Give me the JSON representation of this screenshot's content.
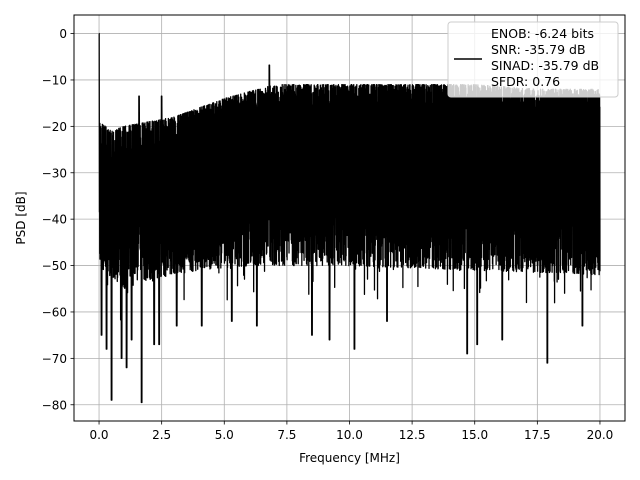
{
  "chart_data": {
    "type": "line",
    "title": "",
    "xlabel": "Frequency [MHz]",
    "ylabel": "PSD [dB]",
    "xlim": [
      -1.0,
      21.0
    ],
    "ylim": [
      -83.5,
      4.0
    ],
    "xticks": [
      0.0,
      2.5,
      5.0,
      7.5,
      10.0,
      12.5,
      15.0,
      17.5,
      20.0
    ],
    "xtick_labels": [
      "0.0",
      "2.5",
      "5.0",
      "7.5",
      "10.0",
      "12.5",
      "15.0",
      "17.5",
      "20.0"
    ],
    "yticks": [
      0,
      -10,
      -20,
      -30,
      -40,
      -50,
      -60,
      -70,
      -80
    ],
    "ytick_labels": [
      "0",
      "−10",
      "−20",
      "−30",
      "−40",
      "−50",
      "−60",
      "−70",
      "−80"
    ],
    "grid": true,
    "legend_position": "top-right",
    "legend": [
      "ENOB: -6.24 bits",
      "SNR: -35.79 dB",
      "SINAD: -35.79 dB",
      "SFDR: 0.76"
    ],
    "series_color": "#000000",
    "series": [
      {
        "x_range": [
          0.0,
          20.0
        ],
        "noise_band": {
          "upper": [
            [
              0.0,
              -19
            ],
            [
              0.5,
              -21
            ],
            [
              1.0,
              -20
            ],
            [
              2.0,
              -19
            ],
            [
              3.0,
              -18
            ],
            [
              4.0,
              -16
            ],
            [
              5.0,
              -14
            ],
            [
              6.0,
              -12.5
            ],
            [
              7.0,
              -11
            ],
            [
              8.0,
              -11
            ],
            [
              10.0,
              -11
            ],
            [
              12.5,
              -11
            ],
            [
              15.0,
              -11
            ],
            [
              17.5,
              -12
            ],
            [
              20.0,
              -12
            ]
          ],
          "core_low": [
            [
              0.0,
              -50
            ],
            [
              1.0,
              -55
            ],
            [
              2.0,
              -53
            ],
            [
              4.0,
              -51
            ],
            [
              6.0,
              -50
            ],
            [
              10.0,
              -50
            ],
            [
              15.0,
              -51
            ],
            [
              20.0,
              -52
            ]
          ],
          "deep_dips": [
            [
              0.1,
              -65
            ],
            [
              0.3,
              -68
            ],
            [
              0.5,
              -79
            ],
            [
              0.9,
              -70
            ],
            [
              1.1,
              -72
            ],
            [
              1.3,
              -66
            ],
            [
              1.7,
              -79.5
            ],
            [
              2.2,
              -67
            ],
            [
              2.4,
              -67
            ],
            [
              3.1,
              -63
            ],
            [
              4.1,
              -63
            ],
            [
              5.3,
              -62
            ],
            [
              6.3,
              -63
            ],
            [
              8.5,
              -65
            ],
            [
              9.2,
              -66
            ],
            [
              10.2,
              -68
            ],
            [
              11.5,
              -62
            ],
            [
              14.7,
              -69
            ],
            [
              15.1,
              -67
            ],
            [
              16.1,
              -66
            ],
            [
              17.9,
              -71
            ],
            [
              19.3,
              -63
            ]
          ]
        },
        "spikes": [
          [
            0.0,
            0.0
          ],
          [
            1.6,
            -13.5
          ],
          [
            2.5,
            -13.5
          ],
          [
            6.8,
            -6.8
          ]
        ]
      }
    ]
  }
}
